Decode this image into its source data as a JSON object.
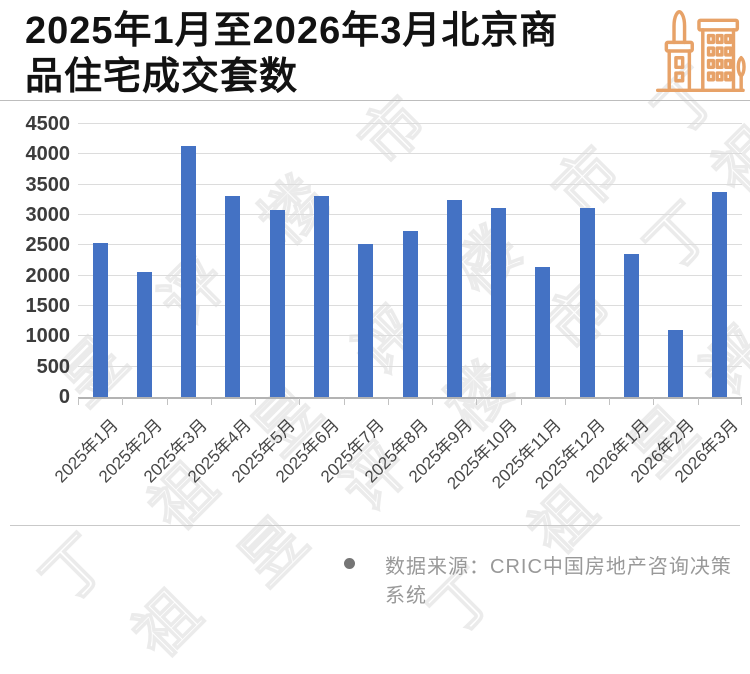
{
  "header": {
    "title_line1": "2025年1月至2026年3月北京商",
    "title_line2": "品住宅成交套数",
    "icon": "buildings-icon",
    "icon_color": "#E7A268"
  },
  "watermark": {
    "text": "丁祖昱评楼市"
  },
  "footer": {
    "bullet_icon": "dot-icon",
    "source_label": "数据来源：CRIC中国房地产咨询决策系统"
  },
  "colors": {
    "bar": "#4472C4",
    "grid": "#DCDCDC",
    "axis": "#B3B3B3",
    "title_text": "#121212",
    "ytick_text": "#3C3C3C",
    "xtick_text": "#474747",
    "footer_text": "#999999",
    "icon_accent": "#E7A268"
  },
  "chart_data": {
    "type": "bar",
    "title": "2025年1月至2026年3月北京商品住宅成交套数",
    "categories": [
      "2025年1月",
      "2025年2月",
      "2025年3月",
      "2025年4月",
      "2025年5月",
      "2025年6月",
      "2025年7月",
      "2025年8月",
      "2025年9月",
      "2025年10月",
      "2025年11月",
      "2025年12月",
      "2026年1月",
      "2026年2月",
      "2026年3月"
    ],
    "values": [
      2540,
      2060,
      4140,
      3310,
      3080,
      3310,
      2520,
      2740,
      3240,
      3110,
      2140,
      3110,
      2350,
      1110,
      3380
    ],
    "xlabel": "",
    "ylabel": "",
    "ylim": [
      0,
      4500
    ],
    "yticks": [
      0,
      500,
      1000,
      1500,
      2000,
      2500,
      3000,
      3500,
      4000,
      4500
    ],
    "grid": true,
    "legend": false,
    "bar_color": "#4472C4"
  }
}
